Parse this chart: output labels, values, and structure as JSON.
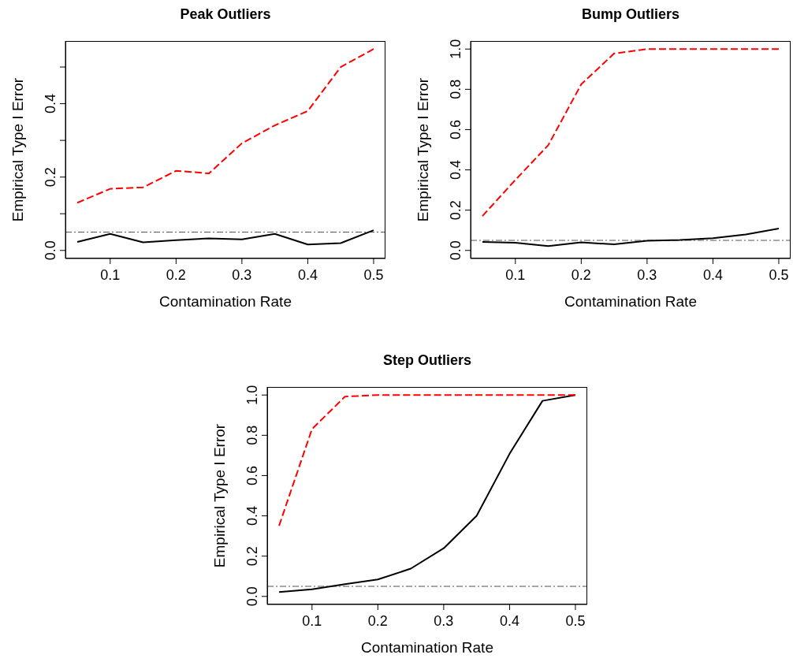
{
  "chart_data": [
    {
      "type": "line",
      "title": "Peak Outliers",
      "xlabel": "Contamination Rate",
      "ylabel": "Empirical Type I Error",
      "x": [
        0.05,
        0.1,
        0.15,
        0.2,
        0.25,
        0.3,
        0.35,
        0.4,
        0.45,
        0.5
      ],
      "series": [
        {
          "color": "#ff0000",
          "line_style": "dashed",
          "values": [
            0.13,
            0.168,
            0.172,
            0.217,
            0.21,
            0.292,
            0.341,
            0.38,
            0.5,
            0.549
          ]
        },
        {
          "color": "#000000",
          "line_style": "solid",
          "values": [
            0.023,
            0.045,
            0.022,
            0.028,
            0.033,
            0.03,
            0.045,
            0.016,
            0.02,
            0.055
          ]
        }
      ],
      "ref_lines": [
        {
          "axis": "y",
          "value": 0.05,
          "color": "#555555",
          "line_style": "dashdot"
        }
      ],
      "xlim": [
        0.032,
        0.518
      ],
      "xticks": [
        0.1,
        0.2,
        0.3,
        0.4,
        0.5
      ],
      "ylim": [
        -0.022,
        0.571
      ],
      "yticks": [
        {
          "value": 0,
          "label": "0.0"
        },
        {
          "value": 0.1,
          "label": null
        },
        0.2,
        {
          "value": 0.3,
          "label": null
        },
        0.4,
        {
          "value": 0.5,
          "label": null
        }
      ]
    },
    {
      "type": "line",
      "title": "Bump Outliers",
      "xlabel": "Contamination Rate",
      "ylabel": "Empirical Type I Error",
      "x": [
        0.05,
        0.1,
        0.15,
        0.2,
        0.25,
        0.3,
        0.35,
        0.4,
        0.45,
        0.5
      ],
      "series": [
        {
          "color": "#ff0000",
          "line_style": "dashed",
          "values": [
            0.171,
            0.35,
            0.523,
            0.825,
            0.978,
            1.0,
            1.0,
            1.0,
            1.0,
            1.0
          ]
        },
        {
          "color": "#000000",
          "line_style": "solid",
          "values": [
            0.042,
            0.038,
            0.022,
            0.04,
            0.03,
            0.048,
            0.052,
            0.061,
            0.079,
            0.109
          ]
        }
      ],
      "ref_lines": [
        {
          "axis": "y",
          "value": 0.05,
          "color": "#555555",
          "line_style": "dashdot"
        }
      ],
      "xlim": [
        0.032,
        0.518
      ],
      "xticks": [
        0.1,
        0.2,
        0.3,
        0.4,
        0.5
      ],
      "ylim": [
        -0.04,
        1.04
      ],
      "yticks": [
        {
          "value": 0,
          "label": "0.0"
        },
        0.2,
        0.4,
        0.6,
        0.8,
        {
          "value": 1,
          "label": "1.0"
        }
      ]
    },
    {
      "type": "line",
      "title": "Step Outliers",
      "xlabel": "Contamination Rate",
      "ylabel": "Empirical Type I Error",
      "x": [
        0.05,
        0.1,
        0.15,
        0.2,
        0.25,
        0.3,
        0.35,
        0.4,
        0.45,
        0.5
      ],
      "series": [
        {
          "color": "#ff0000",
          "line_style": "dashed",
          "values": [
            0.351,
            0.831,
            0.992,
            1.0,
            1.0,
            1.0,
            1.0,
            1.0,
            1.0,
            1.0
          ]
        },
        {
          "color": "#000000",
          "line_style": "solid",
          "values": [
            0.022,
            0.035,
            0.061,
            0.084,
            0.138,
            0.239,
            0.4,
            0.708,
            0.971,
            1.0
          ]
        }
      ],
      "ref_lines": [
        {
          "axis": "y",
          "value": 0.05,
          "color": "#555555",
          "line_style": "dashdot"
        }
      ],
      "xlim": [
        0.032,
        0.518
      ],
      "xticks": [
        0.1,
        0.2,
        0.3,
        0.4,
        0.5
      ],
      "ylim": [
        -0.04,
        1.04
      ],
      "yticks": [
        {
          "value": 0,
          "label": "0.0"
        },
        0.2,
        0.4,
        0.6,
        0.8,
        {
          "value": 1,
          "label": "1.0"
        }
      ]
    }
  ]
}
